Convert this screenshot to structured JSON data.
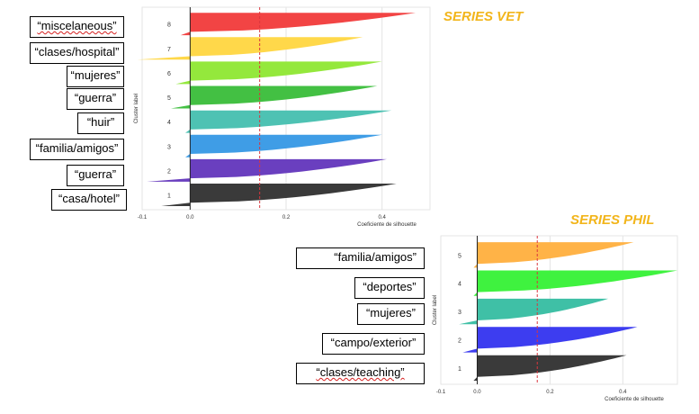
{
  "figure_a": {
    "title": "SERIES VET",
    "labels": [
      "“miscelaneous”",
      "“clases/hospital”",
      "“mujeres”",
      "“guerra”",
      "“huir”",
      "“familia/amigos”",
      "“guerra”",
      "“casa/hotel”"
    ]
  },
  "figure_b": {
    "title": "SERIES PHIL",
    "labels": [
      "“familia/amigos”",
      "“deportes”",
      "“mujeres”",
      "“campo/exterior”",
      "“clases/teaching”"
    ]
  },
  "chart_data": [
    {
      "type": "bar",
      "subtype": "silhouette",
      "title": "SERIES VET",
      "xlabel": "Coeficiente de silhouette",
      "ylabel": "Cluster label",
      "xlim": [
        -0.1,
        0.5
      ],
      "xticks": [
        "-0.1",
        "0.0",
        "0.2",
        "0.4"
      ],
      "xtick_values": [
        -0.1,
        0.0,
        0.2,
        0.4
      ],
      "average_silhouette": 0.145,
      "grid": true,
      "clusters": [
        {
          "label": "1",
          "max": 0.43,
          "min": -0.06,
          "color": "#3a3a3a"
        },
        {
          "label": "2",
          "max": 0.41,
          "min": -0.09,
          "color": "#6a3fbf"
        },
        {
          "label": "3",
          "max": 0.4,
          "min": -0.01,
          "color": "#3f9de6"
        },
        {
          "label": "4",
          "max": 0.42,
          "min": -0.01,
          "color": "#4ec2b3"
        },
        {
          "label": "5",
          "max": 0.39,
          "min": -0.04,
          "color": "#43c043"
        },
        {
          "label": "6",
          "max": 0.4,
          "min": -0.03,
          "color": "#94e83c"
        },
        {
          "label": "7",
          "max": 0.36,
          "min": -0.11,
          "color": "#ffd84a"
        },
        {
          "label": "8",
          "max": 0.47,
          "min": -0.02,
          "color": "#f24444"
        }
      ]
    },
    {
      "type": "bar",
      "subtype": "silhouette",
      "title": "SERIES PHIL",
      "xlabel": "Coeficiente de silhouette",
      "ylabel": "Cluster label",
      "xlim": [
        -0.1,
        0.55
      ],
      "xticks": [
        "-0.1",
        "0.0",
        "0.2",
        "0.4"
      ],
      "xtick_values": [
        -0.1,
        0.0,
        0.2,
        0.4
      ],
      "average_silhouette": 0.165,
      "grid": true,
      "clusters": [
        {
          "label": "1",
          "max": 0.41,
          "min": -0.01,
          "color": "#3a3a3a"
        },
        {
          "label": "2",
          "max": 0.44,
          "min": -0.04,
          "color": "#3d3df0"
        },
        {
          "label": "3",
          "max": 0.36,
          "min": -0.05,
          "color": "#3fc0a6"
        },
        {
          "label": "4",
          "max": 0.55,
          "min": -0.01,
          "color": "#3ff23f"
        },
        {
          "label": "5",
          "max": 0.43,
          "min": -0.01,
          "color": "#ffb347"
        }
      ]
    }
  ]
}
